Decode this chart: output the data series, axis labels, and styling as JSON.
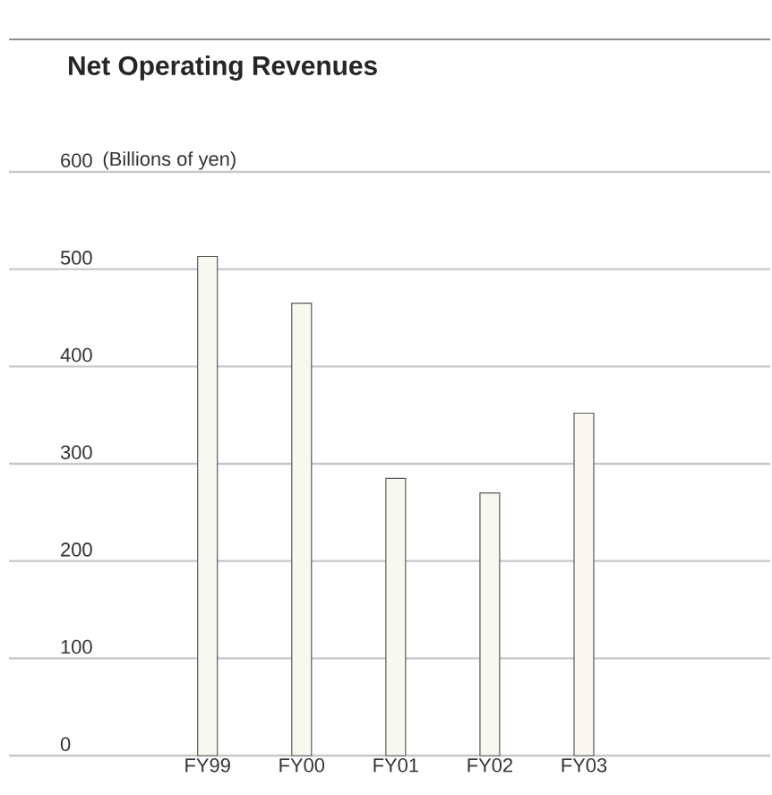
{
  "chart_data": {
    "type": "bar",
    "title": "Net Operating Revenues",
    "ylabel": "(Billions of yen)",
    "categories": [
      "FY99",
      "FY00",
      "FY01",
      "FY02",
      "FY03"
    ],
    "values": [
      513,
      465,
      285,
      270,
      352
    ],
    "color": "#f8f8f0",
    "ylim": [
      0,
      600
    ],
    "yticks": [
      0,
      100,
      200,
      300,
      400,
      500,
      600
    ],
    "grid": "y"
  }
}
